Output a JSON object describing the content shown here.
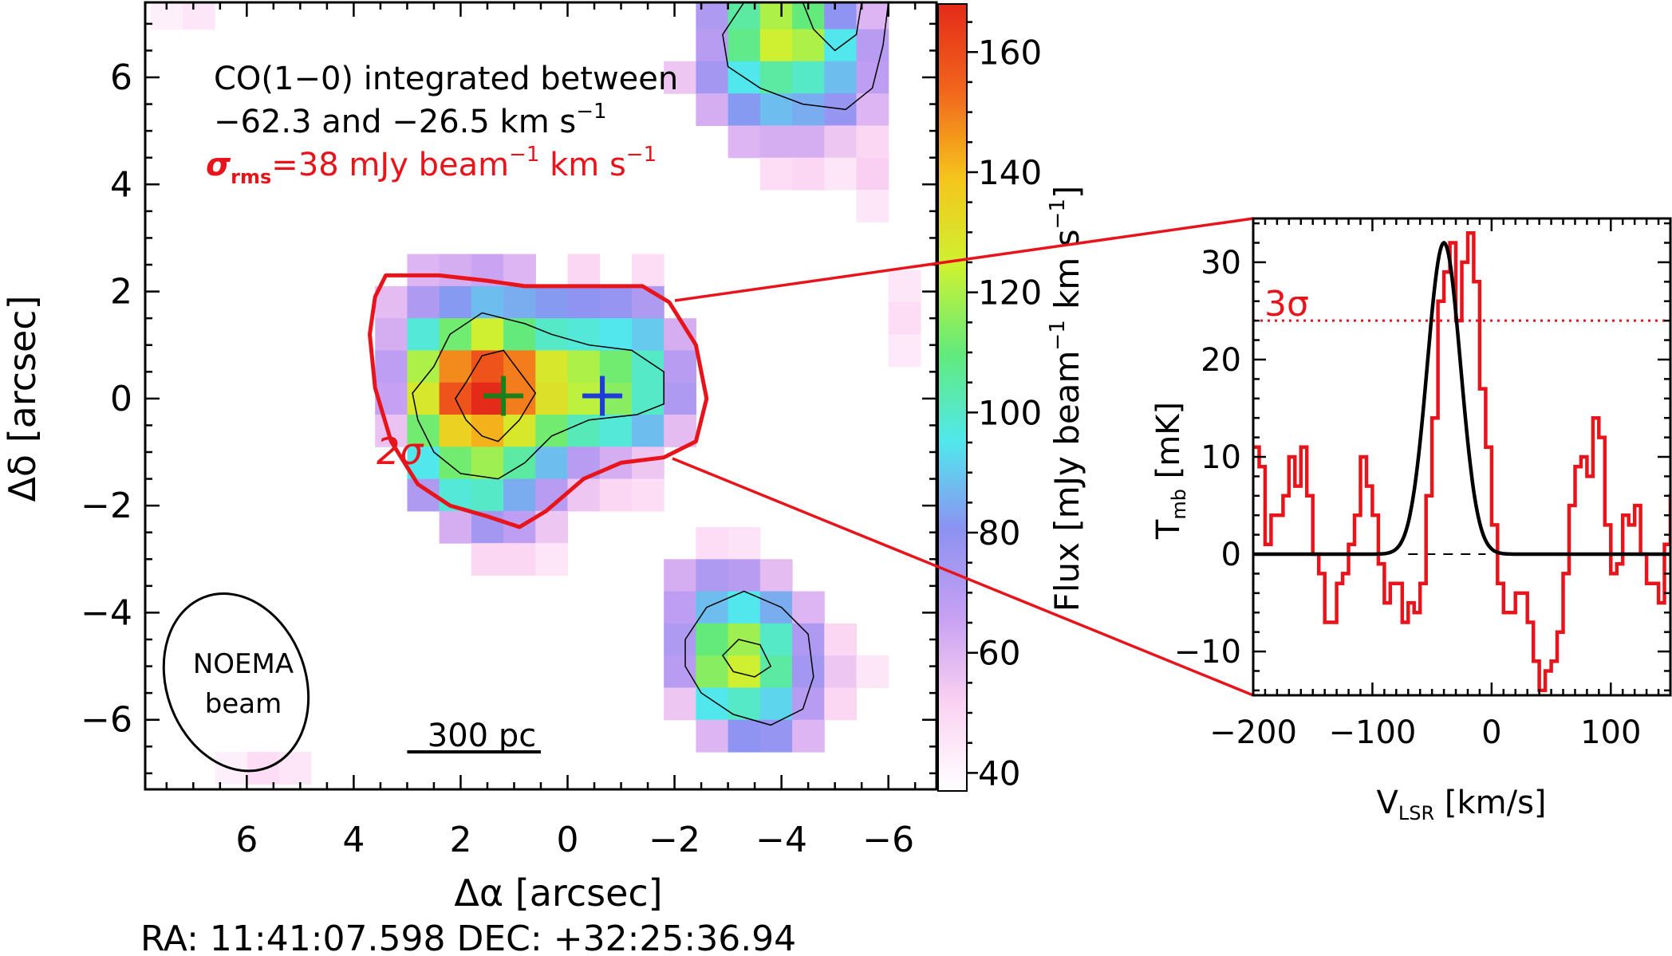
{
  "chart_data": [
    {
      "type": "heatmap",
      "annotations": {
        "title_line1": "CO(1−0) integrated between",
        "title_line2_a": "−62.3 and −26.5 km s",
        "title_line2_sup": "−1",
        "rms_sigma": "σ",
        "rms_sub": "rms",
        "rms_a": "=38 mJy beam",
        "rms_sup1": "−1",
        "rms_b": " km s",
        "rms_sup2": "−1",
        "contour_label": "2σ",
        "beam_line1": "NOEMA",
        "beam_line2": "beam",
        "scalebar_label": "300 pc",
        "coords": "RA: 11:41:07.598   DEC: +32:25:36.94"
      },
      "xlabel": "Δα [arcsec]",
      "ylabel": "Δδ [arcsec]",
      "xlim": [
        7.9,
        -6.9
      ],
      "ylim": [
        -7.3,
        7.4
      ],
      "x_ticks": [
        "6",
        "4",
        "2",
        "0",
        "−2",
        "−4",
        "−6"
      ],
      "y_ticks": [
        "6",
        "4",
        "2",
        "0",
        "−2",
        "−4",
        "−6"
      ],
      "pixel_size_arcsec": 0.6,
      "pixels": [
        [
          7.5,
          7.2,
          42
        ],
        [
          6.9,
          7.2,
          45
        ],
        [
          2.7,
          2.4,
          60
        ],
        [
          2.1,
          2.4,
          62
        ],
        [
          1.5,
          2.4,
          65
        ],
        [
          0.9,
          2.4,
          60
        ],
        [
          -0.3,
          2.4,
          50
        ],
        [
          -1.5,
          2.4,
          48
        ],
        [
          3.3,
          1.8,
          58
        ],
        [
          2.7,
          1.8,
          72
        ],
        [
          2.1,
          1.8,
          82
        ],
        [
          1.5,
          1.8,
          88
        ],
        [
          0.9,
          1.8,
          85
        ],
        [
          0.3,
          1.8,
          82
        ],
        [
          -0.3,
          1.8,
          80
        ],
        [
          -0.9,
          1.8,
          78
        ],
        [
          -1.5,
          1.8,
          72
        ],
        [
          3.3,
          1.2,
          62
        ],
        [
          2.7,
          1.2,
          98
        ],
        [
          2.1,
          1.2,
          112
        ],
        [
          1.5,
          1.2,
          125
        ],
        [
          0.9,
          1.2,
          110
        ],
        [
          0.3,
          1.2,
          100
        ],
        [
          -0.3,
          1.2,
          98
        ],
        [
          -0.9,
          1.2,
          95
        ],
        [
          -1.5,
          1.2,
          90
        ],
        [
          -2.1,
          1.2,
          62
        ],
        [
          3.3,
          0.6,
          68
        ],
        [
          2.7,
          0.6,
          120
        ],
        [
          2.1,
          0.6,
          148
        ],
        [
          1.5,
          0.6,
          158
        ],
        [
          0.9,
          0.6,
          150
        ],
        [
          0.3,
          0.6,
          128
        ],
        [
          -0.3,
          0.6,
          120
        ],
        [
          -0.9,
          0.6,
          112
        ],
        [
          -1.5,
          0.6,
          100
        ],
        [
          -2.1,
          0.6,
          70
        ],
        [
          3.3,
          0.0,
          66
        ],
        [
          2.7,
          0.0,
          128
        ],
        [
          2.1,
          0.0,
          158
        ],
        [
          1.5,
          0.0,
          168
        ],
        [
          0.9,
          0.0,
          150
        ],
        [
          0.3,
          0.0,
          130
        ],
        [
          -0.3,
          0.0,
          122
        ],
        [
          -0.9,
          0.0,
          115
        ],
        [
          -1.5,
          0.0,
          100
        ],
        [
          -2.1,
          0.0,
          72
        ],
        [
          3.3,
          -0.6,
          56
        ],
        [
          2.7,
          -0.6,
          112
        ],
        [
          2.1,
          -0.6,
          135
        ],
        [
          1.5,
          -0.6,
          142
        ],
        [
          0.9,
          -0.6,
          128
        ],
        [
          0.3,
          -0.6,
          112
        ],
        [
          -0.3,
          -0.6,
          102
        ],
        [
          -0.9,
          -0.6,
          98
        ],
        [
          -1.5,
          -0.6,
          88
        ],
        [
          -2.1,
          -0.6,
          58
        ],
        [
          2.7,
          -1.2,
          95
        ],
        [
          2.1,
          -1.2,
          112
        ],
        [
          1.5,
          -1.2,
          118
        ],
        [
          0.9,
          -1.2,
          105
        ],
        [
          0.3,
          -1.2,
          88
        ],
        [
          -0.3,
          -1.2,
          70
        ],
        [
          -0.9,
          -1.2,
          62
        ],
        [
          -1.5,
          -1.2,
          55
        ],
        [
          2.7,
          -1.8,
          72
        ],
        [
          2.1,
          -1.8,
          98
        ],
        [
          1.5,
          -1.8,
          100
        ],
        [
          0.9,
          -1.8,
          85
        ],
        [
          0.3,
          -1.8,
          70
        ],
        [
          -0.3,
          -1.8,
          55
        ],
        [
          -0.9,
          -1.8,
          50
        ],
        [
          -1.5,
          -1.8,
          48
        ],
        [
          2.1,
          -2.4,
          62
        ],
        [
          1.5,
          -2.4,
          75
        ],
        [
          0.9,
          -2.4,
          68
        ],
        [
          0.3,
          -2.4,
          55
        ],
        [
          1.5,
          -3.0,
          50
        ],
        [
          0.9,
          -3.0,
          50
        ],
        [
          0.3,
          -3.0,
          45
        ],
        [
          -2.7,
          -2.7,
          48
        ],
        [
          -3.3,
          -2.7,
          46
        ],
        [
          -2.1,
          -3.3,
          62
        ],
        [
          -2.7,
          -3.3,
          72
        ],
        [
          -3.3,
          -3.3,
          70
        ],
        [
          -3.9,
          -3.3,
          58
        ],
        [
          -2.1,
          -3.9,
          68
        ],
        [
          -2.7,
          -3.9,
          88
        ],
        [
          -3.3,
          -3.9,
          95
        ],
        [
          -3.9,
          -3.9,
          85
        ],
        [
          -4.5,
          -3.9,
          60
        ],
        [
          -2.1,
          -4.5,
          72
        ],
        [
          -2.7,
          -4.5,
          110
        ],
        [
          -3.3,
          -4.5,
          118
        ],
        [
          -3.9,
          -4.5,
          100
        ],
        [
          -4.5,
          -4.5,
          72
        ],
        [
          -5.1,
          -4.5,
          50
        ],
        [
          -2.1,
          -5.1,
          70
        ],
        [
          -2.7,
          -5.1,
          115
        ],
        [
          -3.3,
          -5.1,
          125
        ],
        [
          -3.9,
          -5.1,
          105
        ],
        [
          -4.5,
          -5.1,
          75
        ],
        [
          -5.1,
          -5.1,
          55
        ],
        [
          -5.7,
          -5.1,
          45
        ],
        [
          -2.1,
          -5.7,
          55
        ],
        [
          -2.7,
          -5.7,
          95
        ],
        [
          -3.3,
          -5.7,
          100
        ],
        [
          -3.9,
          -5.7,
          92
        ],
        [
          -4.5,
          -5.7,
          70
        ],
        [
          -5.1,
          -5.7,
          50
        ],
        [
          -2.7,
          -6.3,
          60
        ],
        [
          -3.3,
          -6.3,
          80
        ],
        [
          -3.9,
          -6.3,
          78
        ],
        [
          -4.5,
          -6.3,
          60
        ],
        [
          5.7,
          -6.9,
          48
        ],
        [
          5.1,
          -6.9,
          45
        ],
        [
          6.3,
          -6.9,
          42
        ],
        [
          -2.7,
          7.2,
          72
        ],
        [
          -3.3,
          7.2,
          105
        ],
        [
          -3.9,
          7.2,
          120
        ],
        [
          -4.5,
          7.2,
          110
        ],
        [
          -5.1,
          7.2,
          80
        ],
        [
          -5.7,
          7.2,
          60
        ],
        [
          -2.7,
          6.6,
          70
        ],
        [
          -3.3,
          6.6,
          108
        ],
        [
          -3.9,
          6.6,
          125
        ],
        [
          -4.5,
          6.6,
          120
        ],
        [
          -5.1,
          6.6,
          95
        ],
        [
          -5.7,
          6.6,
          70
        ],
        [
          -2.1,
          6.0,
          55
        ],
        [
          -2.7,
          6.0,
          75
        ],
        [
          -3.3,
          6.0,
          95
        ],
        [
          -3.9,
          6.0,
          105
        ],
        [
          -4.5,
          6.0,
          100
        ],
        [
          -5.1,
          6.0,
          88
        ],
        [
          -5.7,
          6.0,
          68
        ],
        [
          -2.7,
          5.4,
          62
        ],
        [
          -3.3,
          5.4,
          82
        ],
        [
          -3.9,
          5.4,
          88
        ],
        [
          -4.5,
          5.4,
          85
        ],
        [
          -5.1,
          5.4,
          78
        ],
        [
          -5.7,
          5.4,
          60
        ],
        [
          -3.3,
          4.8,
          60
        ],
        [
          -3.9,
          4.8,
          62
        ],
        [
          -4.5,
          4.8,
          62
        ],
        [
          -5.1,
          4.8,
          55
        ],
        [
          -5.7,
          4.8,
          50
        ],
        [
          -3.9,
          4.2,
          48
        ],
        [
          -4.5,
          4.2,
          50
        ],
        [
          -5.1,
          4.2,
          45
        ],
        [
          -5.7,
          4.2,
          52
        ],
        [
          -5.7,
          3.6,
          45
        ],
        [
          -6.3,
          2.1,
          45
        ],
        [
          -6.3,
          1.5,
          48
        ],
        [
          -6.3,
          0.9,
          44
        ]
      ],
      "contours": {
        "two_sigma": [
          [
            3.4,
            2.3
          ],
          [
            2.4,
            2.3
          ],
          [
            1.5,
            2.2
          ],
          [
            0.8,
            2.1
          ],
          [
            -0.2,
            2.1
          ],
          [
            -1.4,
            2.1
          ],
          [
            -1.9,
            1.8
          ],
          [
            -2.4,
            1.0
          ],
          [
            -2.6,
            0.0
          ],
          [
            -2.4,
            -0.8
          ],
          [
            -1.8,
            -1.1
          ],
          [
            -1.0,
            -1.2
          ],
          [
            -0.3,
            -1.5
          ],
          [
            0.4,
            -2.1
          ],
          [
            0.9,
            -2.4
          ],
          [
            1.5,
            -2.2
          ],
          [
            2.2,
            -2.0
          ],
          [
            2.8,
            -1.6
          ],
          [
            3.3,
            -0.8
          ],
          [
            3.6,
            0.2
          ],
          [
            3.7,
            1.2
          ],
          [
            3.6,
            1.9
          ]
        ],
        "level2_main": [
          [
            2.5,
            0.6
          ],
          [
            2.2,
            1.2
          ],
          [
            1.6,
            1.6
          ],
          [
            0.8,
            1.4
          ],
          [
            0.3,
            1.2
          ],
          [
            -0.4,
            1.0
          ],
          [
            -1.2,
            0.9
          ],
          [
            -1.8,
            0.5
          ],
          [
            -1.8,
            -0.1
          ],
          [
            -1.3,
            -0.3
          ],
          [
            -0.4,
            -0.4
          ],
          [
            0.3,
            -0.7
          ],
          [
            0.8,
            -1.2
          ],
          [
            1.3,
            -1.5
          ],
          [
            2.0,
            -1.4
          ],
          [
            2.5,
            -1.0
          ],
          [
            2.8,
            -0.4
          ],
          [
            2.9,
            0.1
          ]
        ],
        "level3_main": [
          [
            1.9,
            0.3
          ],
          [
            1.6,
            0.8
          ],
          [
            1.2,
            0.9
          ],
          [
            0.9,
            0.5
          ],
          [
            0.6,
            0.1
          ],
          [
            0.9,
            -0.4
          ],
          [
            1.3,
            -0.8
          ],
          [
            1.6,
            -0.7
          ],
          [
            1.9,
            -0.4
          ],
          [
            2.1,
            0.0
          ]
        ],
        "lower_outer": [
          [
            -2.2,
            -4.5
          ],
          [
            -2.6,
            -3.9
          ],
          [
            -3.3,
            -3.6
          ],
          [
            -4.0,
            -3.9
          ],
          [
            -4.5,
            -4.4
          ],
          [
            -4.6,
            -5.2
          ],
          [
            -4.4,
            -5.8
          ],
          [
            -3.8,
            -6.1
          ],
          [
            -3.1,
            -5.9
          ],
          [
            -2.5,
            -5.5
          ],
          [
            -2.2,
            -5.0
          ]
        ],
        "lower_inner": [
          [
            -2.9,
            -4.8
          ],
          [
            -3.2,
            -4.5
          ],
          [
            -3.6,
            -4.6
          ],
          [
            -3.8,
            -5.0
          ],
          [
            -3.5,
            -5.2
          ],
          [
            -3.1,
            -5.1
          ]
        ],
        "upper_outer": [
          [
            -3.3,
            7.4
          ],
          [
            -2.9,
            6.8
          ],
          [
            -3.0,
            6.2
          ],
          [
            -3.6,
            5.8
          ],
          [
            -4.4,
            5.5
          ],
          [
            -5.2,
            5.4
          ],
          [
            -5.7,
            5.8
          ],
          [
            -5.9,
            6.6
          ],
          [
            -6.0,
            7.4
          ]
        ],
        "upper_inner": [
          [
            -4.4,
            7.4
          ],
          [
            -4.6,
            6.9
          ],
          [
            -5.0,
            6.5
          ],
          [
            -5.4,
            6.8
          ],
          [
            -5.5,
            7.4
          ]
        ]
      },
      "markers": [
        {
          "x": 1.2,
          "y": 0.05,
          "color": "#1a7f1a"
        },
        {
          "x": -0.65,
          "y": 0.05,
          "color": "#1f3bd8"
        }
      ],
      "beam": {
        "x": 6.2,
        "y": -5.3,
        "major": 3.4,
        "minor": 2.6,
        "angle_deg": -20
      },
      "scalebar": {
        "x_start": 3.0,
        "x_end": 0.5,
        "y": -6.6
      },
      "colorbar": {
        "label_a": "Flux [mJy beam",
        "label_sup1": "−1",
        "label_b": " km s",
        "label_sup2": "−1",
        "label_c": "]",
        "min": 37,
        "max": 168,
        "ticks": [
          "40",
          "60",
          "80",
          "100",
          "120",
          "140",
          "160"
        ],
        "tick_values": [
          40,
          60,
          80,
          100,
          120,
          140,
          160
        ],
        "colors": [
          "#ffffff",
          "#fbd2f2",
          "#c6a0f2",
          "#8c92f2",
          "#50e8ec",
          "#62ea7c",
          "#cdf231",
          "#f5c51c",
          "#f2661c",
          "#e42a19"
        ]
      }
    },
    {
      "type": "line",
      "xlabel_main": "V",
      "xlabel_sub": "LSR",
      "xlabel_rest": " [km/s]",
      "ylabel_main": "T",
      "ylabel_sub": "mb",
      "ylabel_rest": " [mK]",
      "xlim": [
        -200,
        150
      ],
      "ylim": [
        -14.5,
        34.5
      ],
      "x_ticks": [
        "−200",
        "−100",
        "0",
        "100"
      ],
      "x_tick_values": [
        -200,
        -100,
        0,
        100
      ],
      "y_ticks": [
        "−10",
        "0",
        "10",
        "20",
        "30"
      ],
      "y_tick_values": [
        -10,
        0,
        10,
        20,
        30
      ],
      "three_sigma_label": "3σ",
      "three_sigma_level": 24,
      "series": [
        {
          "color": "#e8141c",
          "bin_width": 5,
          "x_start": -200,
          "values": [
            11,
            9,
            1,
            4,
            4,
            6,
            10,
            7,
            11,
            6,
            0,
            -2,
            -7,
            -7,
            -3,
            -2,
            1,
            4,
            10,
            7,
            4,
            -1,
            -5,
            -3,
            -3,
            -7,
            -5,
            -6,
            -3,
            6,
            14,
            26,
            29,
            32,
            24,
            30,
            33,
            28,
            17,
            11,
            3,
            -3,
            -6,
            -6,
            -4,
            -4,
            -7,
            -11,
            -14,
            -12,
            -11,
            -8,
            -2,
            5,
            9,
            10,
            8,
            14,
            12,
            3,
            -2,
            -1,
            4,
            3,
            5,
            0,
            -3,
            -3,
            -5,
            1,
            6
          ]
        },
        {
          "color": "#000000",
          "gaussian": {
            "amplitude": 32,
            "center": -40,
            "sigma": 14
          }
        }
      ],
      "zero_line": {
        "x_start": -70,
        "x_end": -5
      }
    }
  ]
}
